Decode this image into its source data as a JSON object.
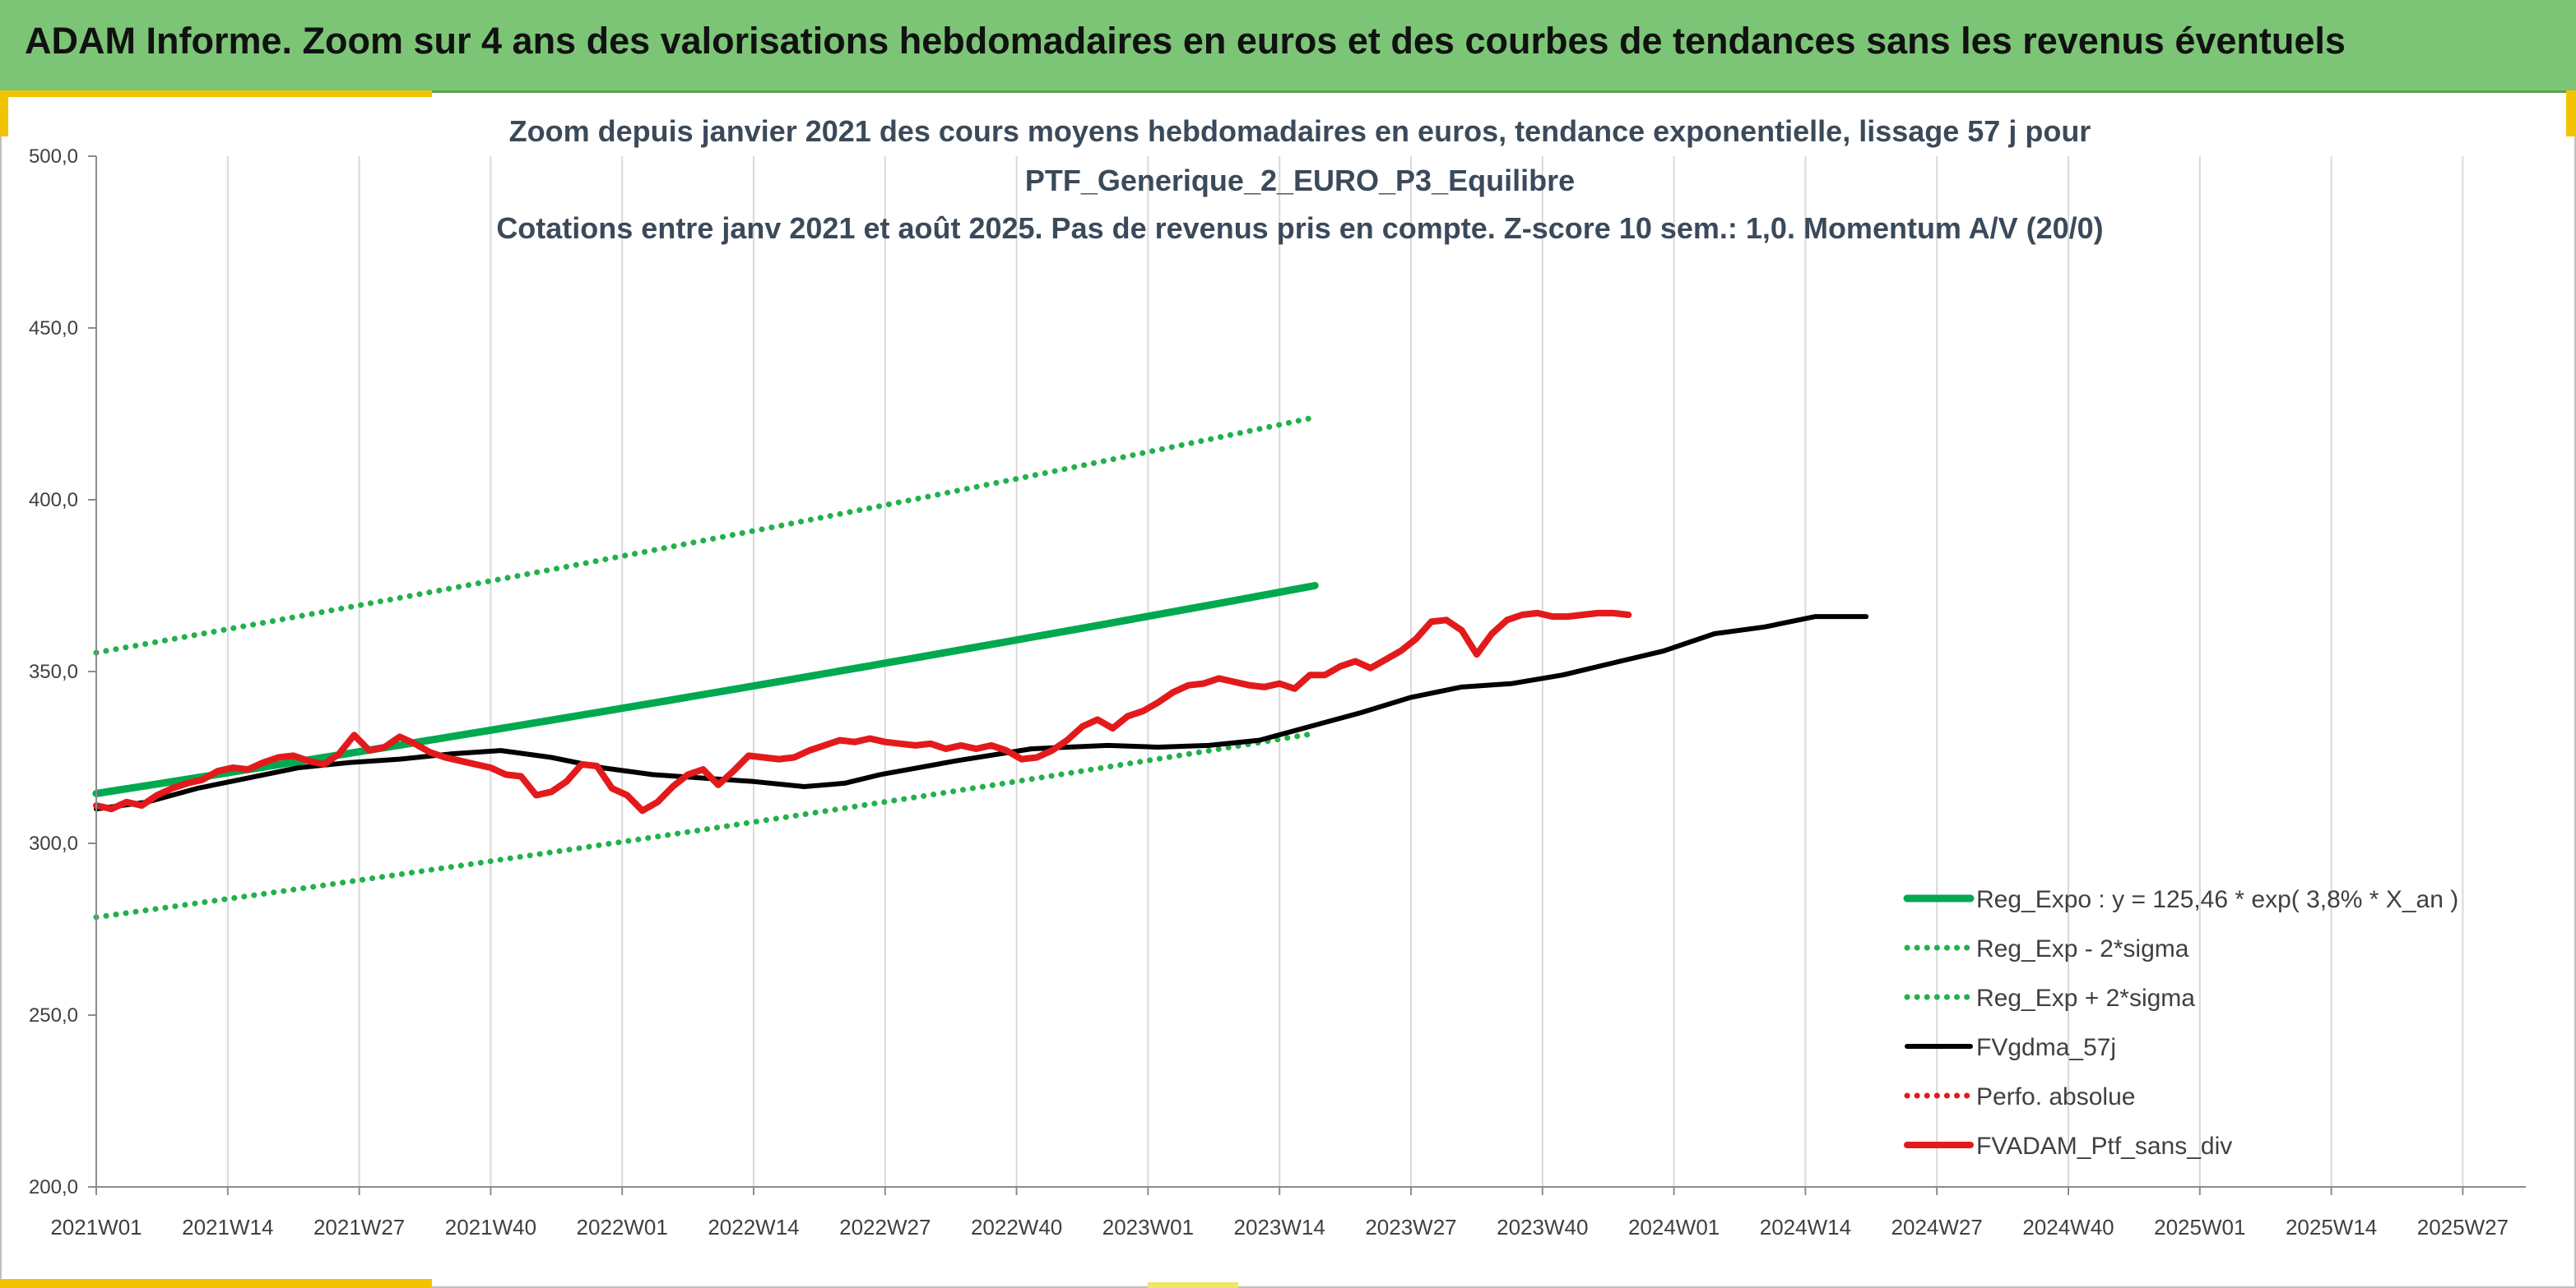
{
  "banner": {
    "title": "ADAM Informe. Zoom sur 4 ans des valorisations hebdomadaires en euros et des courbes de tendances sans les revenus éventuels"
  },
  "colors": {
    "banner_bg": "#7cc576",
    "accent": "#f2c400",
    "trend": "#00a94f",
    "band": "#22b14c",
    "smooth": "#000000",
    "portfolio": "#e31a1c"
  },
  "chart_data": {
    "type": "line",
    "title_lines": [
      "Zoom depuis janvier 2021 des cours moyens hebdomadaires en euros, tendance exponentielle, lissage 57 j pour",
      "PTF_Generique_2_EURO_P3_Equilibre",
      "Cotations entre janv 2021 et août 2025. Pas de revenus pris en compte. Z-score 10 sem.: 1,0. Momentum A/V (20/0)"
    ],
    "xlabel": "",
    "ylabel": "",
    "ylim": [
      200,
      500
    ],
    "y_ticks": [
      "200,0",
      "250,0",
      "300,0",
      "350,0",
      "400,0",
      "450,0",
      "500,0"
    ],
    "x_tick_labels": [
      "2021W01",
      "2021W14",
      "2021W27",
      "2021W40",
      "2022W01",
      "2022W14",
      "2022W27",
      "2022W40",
      "2023W01",
      "2023W14",
      "2023W27",
      "2023W40",
      "2024W01",
      "2024W14",
      "2024W27",
      "2024W40",
      "2025W01",
      "2025W14",
      "2025W27"
    ],
    "x_range_weeks": [
      0,
      241
    ],
    "grid": "vertical lines at x ticks",
    "legend_position": "bottom-right",
    "series": [
      {
        "name": "Reg_Expo : y = 125,46 * exp( 3,8% *  X_an )",
        "style": "solid-thick",
        "color": "#00a94f",
        "points": [
          [
            0,
            314.5
          ],
          [
            241,
            375.0
          ]
        ]
      },
      {
        "name": "Reg_Exp - 2*sigma",
        "style": "dotted",
        "color": "#22b14c",
        "points": [
          [
            0,
            278.5
          ],
          [
            241,
            332.0
          ]
        ]
      },
      {
        "name": "Reg_Exp + 2*sigma",
        "style": "dotted",
        "color": "#22b14c",
        "points": [
          [
            0,
            355.5
          ],
          [
            241,
            424.0
          ]
        ]
      },
      {
        "name": "FVgdma_57j",
        "style": "solid",
        "color": "#000000",
        "points": [
          [
            0,
            310.0
          ],
          [
            10,
            312.0
          ],
          [
            20,
            316.0
          ],
          [
            30,
            319.0
          ],
          [
            40,
            322.0
          ],
          [
            50,
            323.5
          ],
          [
            60,
            324.5
          ],
          [
            70,
            326.0
          ],
          [
            80,
            327.0
          ],
          [
            90,
            325.0
          ],
          [
            100,
            322.0
          ],
          [
            110,
            320.0
          ],
          [
            120,
            319.0
          ],
          [
            130,
            318.0
          ],
          [
            140,
            316.5
          ],
          [
            148,
            317.5
          ],
          [
            155,
            320.0
          ],
          [
            170,
            324.0
          ],
          [
            185,
            327.5
          ],
          [
            200,
            328.5
          ],
          [
            210,
            328.0
          ],
          [
            220,
            328.5
          ],
          [
            230,
            330.0
          ],
          [
            240,
            334.0
          ],
          [
            250,
            338.0
          ],
          [
            260,
            342.5
          ],
          [
            270,
            345.5
          ],
          [
            280,
            346.5
          ],
          [
            290,
            349.0
          ],
          [
            300,
            352.5
          ],
          [
            310,
            356.0
          ],
          [
            320,
            361.0
          ],
          [
            330,
            363.0
          ],
          [
            340,
            366.0
          ],
          [
            350,
            366.0
          ]
        ]
      },
      {
        "name": "Perfo. absolue",
        "style": "dotted",
        "color": "#e31a1c",
        "points": []
      },
      {
        "name": "FVADAM_Ptf_sans_div",
        "style": "solid-thick",
        "color": "#e31a1c",
        "points": [
          [
            0,
            311.0
          ],
          [
            3,
            310.0
          ],
          [
            6,
            312.0
          ],
          [
            9,
            311.0
          ],
          [
            12,
            314.0
          ],
          [
            15,
            316.0
          ],
          [
            18,
            317.5
          ],
          [
            21,
            318.5
          ],
          [
            24,
            321.0
          ],
          [
            27,
            322.0
          ],
          [
            30,
            321.5
          ],
          [
            33,
            323.5
          ],
          [
            36,
            325.0
          ],
          [
            39,
            325.5
          ],
          [
            42,
            324.0
          ],
          [
            45,
            323.0
          ],
          [
            48,
            326.0
          ],
          [
            51,
            331.5
          ],
          [
            54,
            327.0
          ],
          [
            57,
            328.0
          ],
          [
            60,
            331.0
          ],
          [
            63,
            329.0
          ],
          [
            66,
            326.5
          ],
          [
            69,
            325.0
          ],
          [
            72,
            324.0
          ],
          [
            75,
            323.0
          ],
          [
            78,
            322.0
          ],
          [
            81,
            320.0
          ],
          [
            84,
            319.5
          ],
          [
            87,
            314.0
          ],
          [
            90,
            315.0
          ],
          [
            93,
            318.0
          ],
          [
            96,
            323.0
          ],
          [
            99,
            322.5
          ],
          [
            102,
            316.0
          ],
          [
            105,
            314.0
          ],
          [
            108,
            309.5
          ],
          [
            111,
            312.0
          ],
          [
            114,
            316.5
          ],
          [
            117,
            320.0
          ],
          [
            120,
            321.5
          ],
          [
            123,
            317.0
          ],
          [
            126,
            321.0
          ],
          [
            129,
            325.5
          ],
          [
            132,
            325.0
          ],
          [
            135,
            324.5
          ],
          [
            138,
            325.0
          ],
          [
            141,
            327.0
          ],
          [
            144,
            328.5
          ],
          [
            147,
            330.0
          ],
          [
            150,
            329.5
          ],
          [
            153,
            330.5
          ],
          [
            156,
            329.5
          ],
          [
            159,
            329.0
          ],
          [
            162,
            328.5
          ],
          [
            165,
            329.0
          ],
          [
            168,
            327.5
          ],
          [
            171,
            328.5
          ],
          [
            174,
            327.5
          ],
          [
            177,
            328.5
          ],
          [
            180,
            327.0
          ],
          [
            183,
            324.5
          ],
          [
            186,
            325.0
          ],
          [
            189,
            327.0
          ],
          [
            192,
            330.0
          ],
          [
            195,
            334.0
          ],
          [
            198,
            336.0
          ],
          [
            201,
            333.5
          ],
          [
            204,
            337.0
          ],
          [
            207,
            338.5
          ],
          [
            210,
            341.0
          ],
          [
            213,
            344.0
          ],
          [
            216,
            346.0
          ],
          [
            219,
            346.5
          ],
          [
            222,
            348.0
          ],
          [
            225,
            347.0
          ],
          [
            228,
            346.0
          ],
          [
            231,
            345.5
          ],
          [
            234,
            346.5
          ],
          [
            237,
            345.0
          ],
          [
            240,
            349.0
          ],
          [
            243,
            349.0
          ],
          [
            246,
            351.5
          ],
          [
            249,
            353.0
          ],
          [
            252,
            351.0
          ],
          [
            255,
            353.5
          ],
          [
            258,
            356.0
          ],
          [
            261,
            359.5
          ],
          [
            264,
            364.5
          ],
          [
            267,
            365.0
          ],
          [
            270,
            362.0
          ],
          [
            273,
            355.0
          ],
          [
            276,
            361.0
          ],
          [
            279,
            365.0
          ],
          [
            282,
            366.5
          ],
          [
            285,
            367.0
          ],
          [
            288,
            366.0
          ],
          [
            291,
            366.0
          ],
          [
            294,
            366.5
          ],
          [
            297,
            367.0
          ],
          [
            300,
            367.0
          ],
          [
            303,
            366.5
          ]
        ]
      }
    ]
  }
}
